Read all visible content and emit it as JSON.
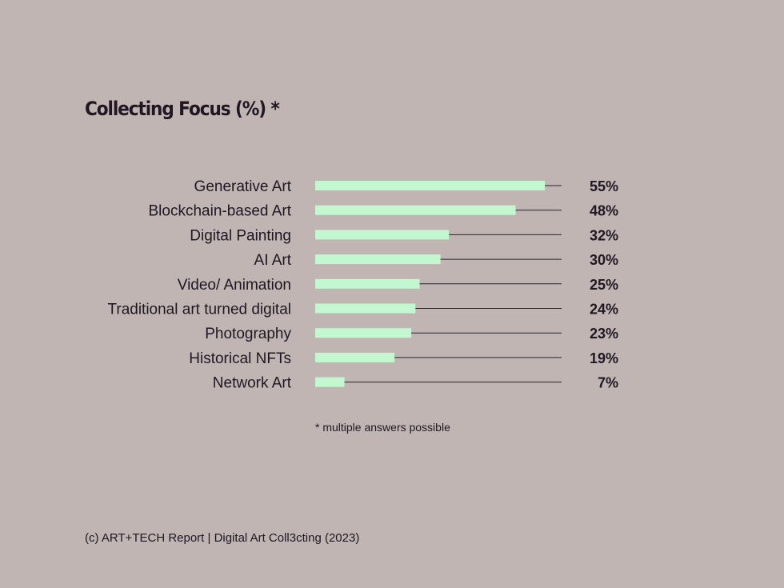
{
  "chart_data": {
    "type": "bar",
    "orientation": "horizontal",
    "title": "Collecting Focus (%) *",
    "categories": [
      "Generative Art",
      "Blockchain-based Art",
      "Digital Painting",
      "AI Art",
      "Video/ Animation",
      "Traditional art turned digital",
      "Photography",
      "Historical NFTs",
      "Network Art"
    ],
    "values": [
      55,
      48,
      32,
      30,
      25,
      24,
      23,
      19,
      7
    ],
    "value_labels": [
      "55%",
      "48%",
      "32%",
      "30%",
      "25%",
      "24%",
      "23%",
      "19%",
      "7%"
    ],
    "xlim": [
      0,
      59
    ],
    "bar_color": "#c3f7cf",
    "track_color": "#2a2430"
  },
  "footnote": "* multiple answers possible",
  "source": "(c) ART+TECH Report | Digital Art Coll3cting (2023)"
}
